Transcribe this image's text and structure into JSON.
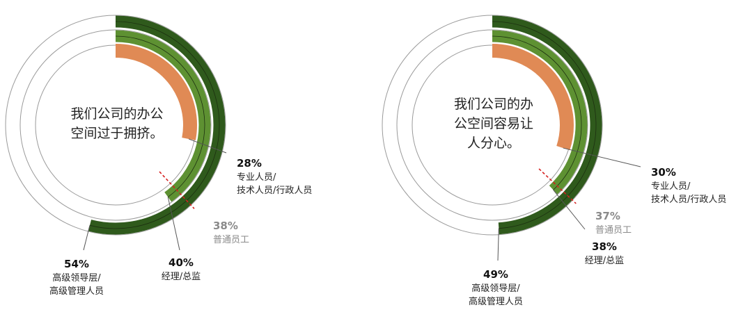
{
  "colors": {
    "track": "#9a9a9a",
    "orange": "#e08a55",
    "light_green": "#5e9132",
    "dark_green": "#2f5a1c",
    "reference": "#d62020",
    "leader": "#555555",
    "muted_text": "#8a8a8a"
  },
  "chart_data": [
    {
      "type": "radial-bar",
      "center_text": [
        "我们公司的办公",
        "空间过于拥挤。"
      ],
      "series": [
        {
          "name": "专业人员/技术人员/行政人员",
          "value": 28,
          "label_pct": "28%",
          "label_lines": [
            "专业人员/",
            "技术人员/行政人员"
          ]
        },
        {
          "name": "经理/总监",
          "value": 40,
          "label_pct": "40%",
          "label_lines": [
            "经理/总监"
          ]
        },
        {
          "name": "高级领导层/高级管理人员",
          "value": 54,
          "label_pct": "54%",
          "label_lines": [
            "高级领导层/",
            "高级管理人员"
          ]
        }
      ],
      "reference": {
        "name": "普通员工",
        "value": 38,
        "label_pct": "38%",
        "label_lines": [
          "普通员工"
        ]
      }
    },
    {
      "type": "radial-bar",
      "center_text": [
        "我们公司的办",
        "公空间容易让",
        "人分心。"
      ],
      "series": [
        {
          "name": "专业人员/技术人员/行政人员",
          "value": 30,
          "label_pct": "30%",
          "label_lines": [
            "专业人员/",
            "技术人员/行政人员"
          ]
        },
        {
          "name": "经理/总监",
          "value": 38,
          "label_pct": "38%",
          "label_lines": [
            "经理/总监"
          ]
        },
        {
          "name": "高级领导层/高级管理人员",
          "value": 49,
          "label_pct": "49%",
          "label_lines": [
            "高级领导层/",
            "高级管理人员"
          ]
        }
      ],
      "reference": {
        "name": "普通员工",
        "value": 37,
        "label_pct": "37%",
        "label_lines": [
          "普通员工"
        ]
      }
    }
  ]
}
